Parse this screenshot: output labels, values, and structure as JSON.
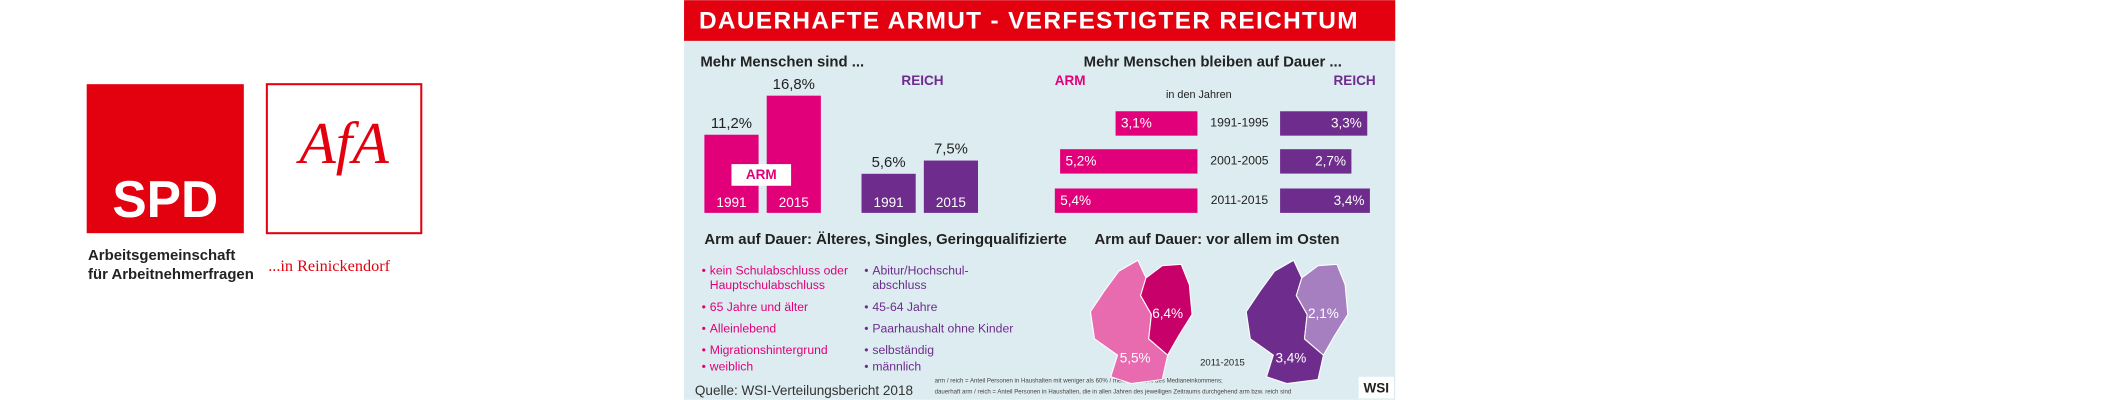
{
  "logos": {
    "spd": "SPD",
    "afa": "AfA",
    "afa_name": [
      "Arbeitsgemeinschaft",
      "für Arbeitnehmerfragen"
    ],
    "location": "...in Reinickendorf"
  },
  "infographic": {
    "title": "DAUERHAFTE ARMUT  -  VERFESTIGTER REICHTUM",
    "panel1": {
      "title": "Mehr Menschen sind ...",
      "groups": [
        {
          "name": "ARM",
          "color": "#e2007a",
          "years": [
            "1991",
            "2015"
          ],
          "values": [
            11.2,
            16.8
          ],
          "value_labels": [
            "11,2%",
            "16,8%"
          ]
        },
        {
          "name": "REICH",
          "color": "#6e2c8c",
          "years": [
            "1991",
            "2015"
          ],
          "values": [
            5.6,
            7.5
          ],
          "value_labels": [
            "5,6%",
            "7,5%"
          ]
        }
      ]
    },
    "panel2": {
      "title": "Mehr Menschen bleiben auf Dauer ...",
      "period_label": "in den Jahren",
      "periods": [
        "1991-1995",
        "2001-2005",
        "2011-2015"
      ],
      "series": [
        {
          "name": "ARM",
          "color": "#e2007a",
          "values": [
            3.1,
            5.2,
            5.4
          ],
          "value_labels": [
            "3,1%",
            "5,2%",
            "5,4%"
          ]
        },
        {
          "name": "REICH",
          "color": "#6e2c8c",
          "values": [
            3.3,
            2.7,
            3.4
          ],
          "value_labels": [
            "3,3%",
            "2,7%",
            "3,4%"
          ]
        }
      ]
    },
    "panel3": {
      "title": "Arm auf Dauer: Älteres, Singles, Geringqualifizierte",
      "left": [
        [
          "kein Schulabschluss oder",
          "Hauptschulabschluss"
        ],
        [
          "65 Jahre und älter"
        ],
        [
          "Alleinlebend"
        ],
        [
          "Migrationshintergrund"
        ],
        [
          "weiblich"
        ]
      ],
      "right": [
        [
          "Abitur/Hochschul-",
          "abschluss"
        ],
        [
          "45-64 Jahre"
        ],
        [
          "Paarhaushalt ohne Kinder"
        ],
        [
          "selbständig"
        ],
        [
          "männlich"
        ]
      ]
    },
    "panel4": {
      "title": "Arm auf Dauer: vor allem im Osten",
      "period": "2011-2015",
      "maps": [
        {
          "east": "6,4%",
          "west": "5,5%"
        },
        {
          "east": "2,1%",
          "west": "3,4%"
        }
      ]
    },
    "source": "Quelle: WSI-Verteilungsbericht 2018",
    "footnote": [
      "arm / reich = Anteil Personen in Haushalten mit weniger als 60% / mehr als 200% des Medianeinkommens;",
      "dauerhaft arm / reich = Anteil Personen in Haushalten, die in allen Jahren des jeweiligen Zeitraums durchgehend arm bzw. reich sind"
    ],
    "publisher": "WSI"
  }
}
